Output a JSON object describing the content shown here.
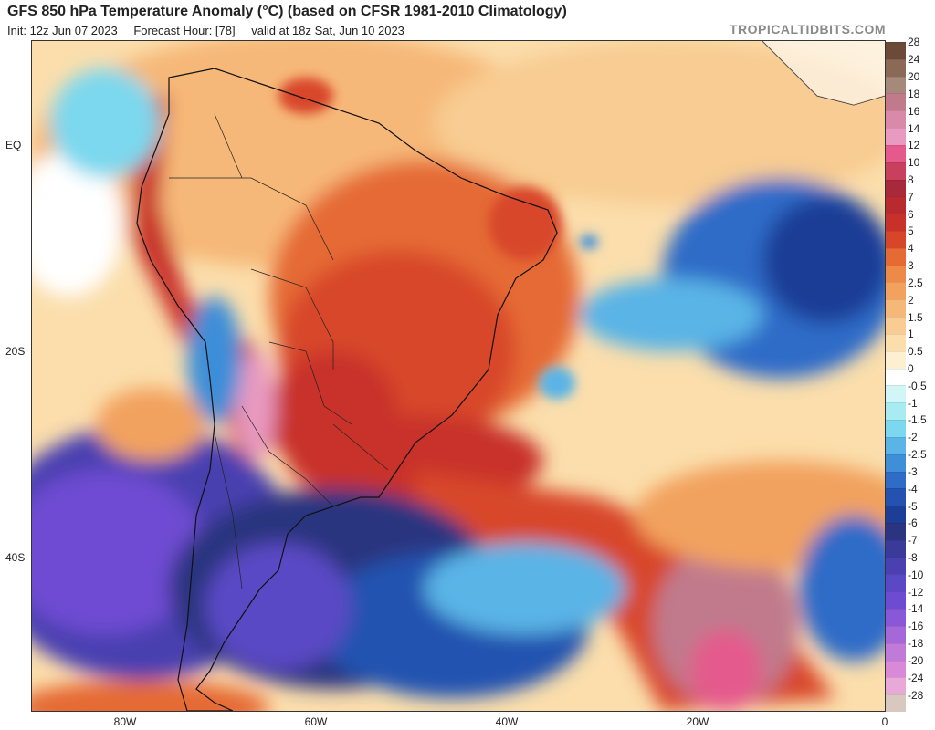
{
  "header": {
    "title": "GFS 850 hPa Temperature Anomaly (°C) (based on CFSR 1981-2010 Climatology)",
    "init": "Init: 12z Jun 07 2023",
    "forecast_hour": "Forecast Hour: [78]",
    "valid": "valid at 18z Sat, Jun 10 2023",
    "site": "TROPICALTIDBITS.COM"
  },
  "axes": {
    "lat_labels": [
      "EQ",
      "20S",
      "40S"
    ],
    "lon_labels": [
      "80W",
      "60W",
      "40W",
      "20W",
      "0"
    ]
  },
  "legend": {
    "levels": [
      {
        "label": "28",
        "color": "#6b4a3a"
      },
      {
        "label": "24",
        "color": "#8a6a56"
      },
      {
        "label": "20",
        "color": "#a58a7c"
      },
      {
        "label": "18",
        "color": "#c07a8c"
      },
      {
        "label": "16",
        "color": "#d88aa8"
      },
      {
        "label": "14",
        "color": "#e89ac0"
      },
      {
        "label": "12",
        "color": "#e45a8c"
      },
      {
        "label": "10",
        "color": "#c8405e"
      },
      {
        "label": "8",
        "color": "#a8283c"
      },
      {
        "label": "7",
        "color": "#b92a30"
      },
      {
        "label": "6",
        "color": "#c8302a"
      },
      {
        "label": "5",
        "color": "#d8462a"
      },
      {
        "label": "4",
        "color": "#e56a34"
      },
      {
        "label": "3",
        "color": "#ee8a48"
      },
      {
        "label": "2.5",
        "color": "#f2a25e"
      },
      {
        "label": "2",
        "color": "#f6b878"
      },
      {
        "label": "1.5",
        "color": "#f8cc92"
      },
      {
        "label": "1",
        "color": "#fbdeac"
      },
      {
        "label": "0.5",
        "color": "#fdefd2"
      },
      {
        "label": "0",
        "color": "#ffffff"
      },
      {
        "label": "-0.5",
        "color": "#d2f6f8"
      },
      {
        "label": "-1",
        "color": "#a8ecf2"
      },
      {
        "label": "-1.5",
        "color": "#7cd8ee"
      },
      {
        "label": "-2",
        "color": "#5ab4e6"
      },
      {
        "label": "-2.5",
        "color": "#3e8ed8"
      },
      {
        "label": "-3",
        "color": "#2e6cc8"
      },
      {
        "label": "-4",
        "color": "#2452b0"
      },
      {
        "label": "-5",
        "color": "#1c3e96"
      },
      {
        "label": "-6",
        "color": "#2a3480"
      },
      {
        "label": "-7",
        "color": "#3a3a98"
      },
      {
        "label": "-8",
        "color": "#4a40b0"
      },
      {
        "label": "-10",
        "color": "#5a48c4"
      },
      {
        "label": "-12",
        "color": "#6e4cd2"
      },
      {
        "label": "-14",
        "color": "#8858d8"
      },
      {
        "label": "-16",
        "color": "#a468d8"
      },
      {
        "label": "-18",
        "color": "#c07ad8"
      },
      {
        "label": "-20",
        "color": "#d88ad8"
      },
      {
        "label": "-24",
        "color": "#e8a8d8"
      },
      {
        "label": "-28",
        "color": "#d8c8c0"
      }
    ]
  }
}
